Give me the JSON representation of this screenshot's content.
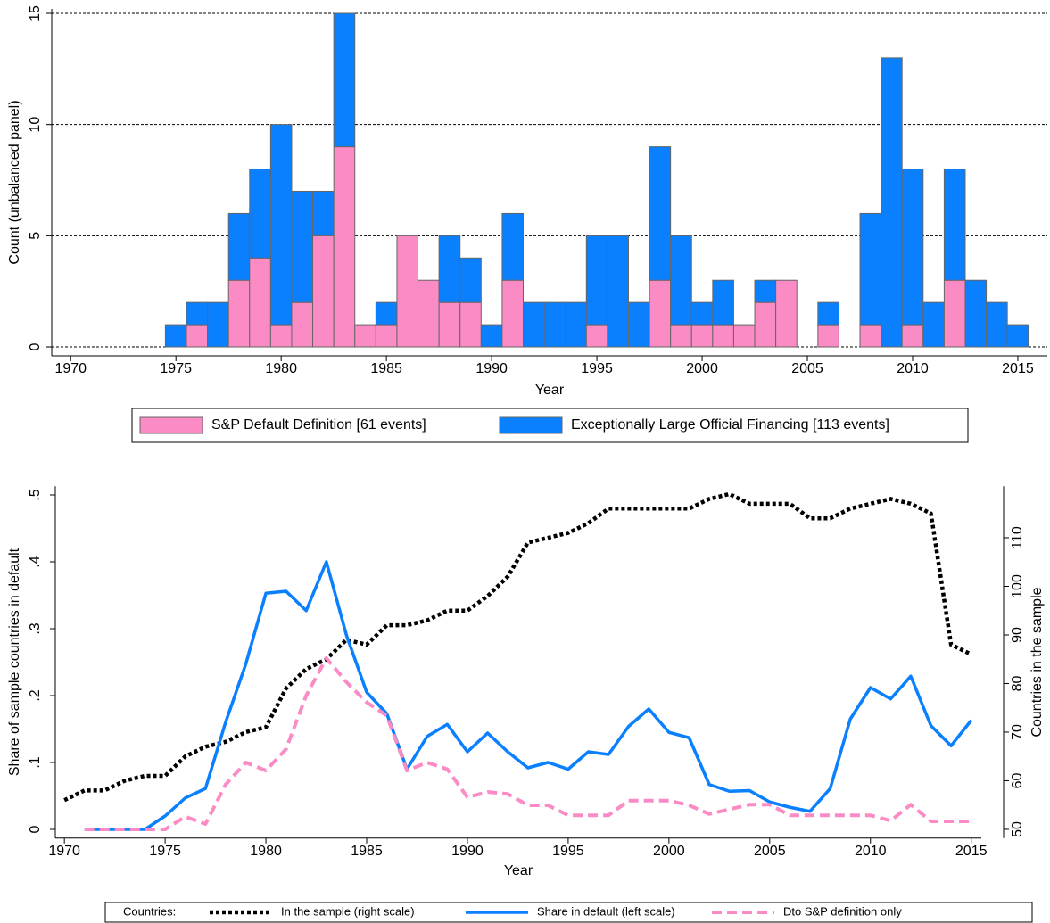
{
  "chart_data": [
    {
      "type": "bar",
      "stacked": true,
      "x": [
        1975,
        1976,
        1977,
        1978,
        1979,
        1980,
        1981,
        1982,
        1983,
        1984,
        1985,
        1986,
        1987,
        1988,
        1989,
        1990,
        1991,
        1992,
        1993,
        1994,
        1995,
        1996,
        1997,
        1998,
        1999,
        2000,
        2001,
        2002,
        2003,
        2004,
        2005,
        2006,
        2007,
        2008,
        2009,
        2010,
        2011,
        2012,
        2013,
        2014,
        2015
      ],
      "series": [
        {
          "name": "S&P Default Definition [61 events]",
          "color": "#fb8bc4",
          "values": [
            0,
            1,
            0,
            3,
            4,
            1,
            2,
            5,
            9,
            1,
            1,
            5,
            3,
            2,
            2,
            0,
            3,
            0,
            0,
            0,
            1,
            0,
            0,
            3,
            1,
            1,
            1,
            1,
            2,
            3,
            0,
            1,
            0,
            1,
            0,
            1,
            0,
            3,
            0,
            0,
            0
          ]
        },
        {
          "name": "Exceptionally Large Official Financing [113 events]",
          "color": "#0a80ff",
          "values": [
            1,
            1,
            2,
            3,
            4,
            9,
            5,
            2,
            6,
            0,
            1,
            0,
            0,
            3,
            2,
            1,
            3,
            2,
            2,
            2,
            4,
            5,
            2,
            6,
            4,
            1,
            2,
            0,
            1,
            0,
            0,
            1,
            0,
            5,
            13,
            7,
            2,
            5,
            3,
            2,
            1
          ]
        }
      ],
      "xlabel": "Year",
      "ylabel": "Count (unbalanced panel)",
      "xlim": [
        1969.1,
        2016.4
      ],
      "ylim": [
        -0.4,
        15.2
      ],
      "xticks": [
        1970,
        1975,
        1980,
        1985,
        1990,
        1995,
        2000,
        2005,
        2010,
        2015
      ],
      "yticks": [
        0,
        5,
        10,
        15
      ],
      "grid": true,
      "legend": "bottom"
    },
    {
      "type": "line",
      "x": [
        1970,
        1971,
        1972,
        1973,
        1974,
        1975,
        1976,
        1977,
        1978,
        1979,
        1980,
        1981,
        1982,
        1983,
        1984,
        1985,
        1986,
        1987,
        1988,
        1989,
        1990,
        1991,
        1992,
        1993,
        1994,
        1995,
        1996,
        1997,
        1998,
        1999,
        2000,
        2001,
        2002,
        2003,
        2004,
        2005,
        2006,
        2007,
        2008,
        2009,
        2010,
        2011,
        2012,
        2013,
        2014,
        2015
      ],
      "series": [
        {
          "name": "In the sample (right scale)",
          "color": "#000000",
          "style": "dotted",
          "axis": "y2",
          "values": [
            56,
            58,
            58,
            60,
            61,
            61,
            65,
            67,
            68,
            70,
            71,
            79,
            83,
            85,
            89,
            88,
            92,
            92,
            93,
            95,
            95,
            98,
            102,
            109,
            110,
            111,
            113,
            116,
            116,
            116,
            116,
            116,
            118,
            119,
            117,
            117,
            117,
            114,
            114,
            116,
            117,
            118,
            117,
            115,
            88,
            86
          ]
        },
        {
          "name": "Share in default (left scale)",
          "color": "#0a80ff",
          "style": "solid",
          "values": [
            null,
            0,
            0,
            0,
            0,
            0.02,
            0.047,
            0.061,
            0.16,
            0.247,
            0.353,
            0.356,
            0.327,
            0.4,
            0.29,
            0.205,
            0.173,
            0.09,
            0.139,
            0.157,
            0.116,
            0.144,
            0.116,
            0.092,
            0.1,
            0.09,
            0.116,
            0.112,
            0.154,
            0.18,
            0.145,
            0.137,
            0.067,
            0.057,
            0.058,
            0.041,
            0.033,
            0.027,
            0.061,
            0.165,
            0.212,
            0.195,
            0.229,
            0.155,
            0.125,
            0.163
          ]
        },
        {
          "name": "Dto S&P definition only",
          "color": "#fb8bc4",
          "style": "dashed",
          "values": [
            null,
            0,
            0,
            0,
            0,
            0,
            0.019,
            0.008,
            0.067,
            0.1,
            0.088,
            0.12,
            0.2,
            0.256,
            0.22,
            0.19,
            0.17,
            0.088,
            0.1,
            0.09,
            0.048,
            0.056,
            0.053,
            0.036,
            0.036,
            0.021,
            0.021,
            0.021,
            0.043,
            0.043,
            0.043,
            0.036,
            0.023,
            0.03,
            0.037,
            0.037,
            0.021,
            0.021,
            0.021,
            0.021,
            0.021,
            0.013,
            0.037,
            0.012,
            0.012,
            0.012
          ]
        }
      ],
      "legend_title": "Countries:",
      "xlabel": "Year",
      "ylabel": "Share of sample countries in default",
      "y2label": "Countries in the sample",
      "xlim": [
        1969.55,
        2015.5
      ],
      "ylim": [
        -0.013,
        0.513
      ],
      "y2lim": [
        48.2,
        120.6
      ],
      "xticks": [
        1970,
        1975,
        1980,
        1985,
        1990,
        1995,
        2000,
        2005,
        2010,
        2015
      ],
      "yticks": [
        0,
        {
          "value": 0.1,
          "label": ".1"
        },
        {
          "value": 0.2,
          "label": ".2"
        },
        {
          "value": 0.3,
          "label": ".3"
        },
        {
          "value": 0.4,
          "label": ".4"
        },
        {
          "value": 0.5,
          "label": ".5"
        }
      ],
      "y2ticks": [
        50,
        60,
        70,
        80,
        90,
        100,
        110
      ],
      "grid": false,
      "legend": "bottom"
    }
  ]
}
